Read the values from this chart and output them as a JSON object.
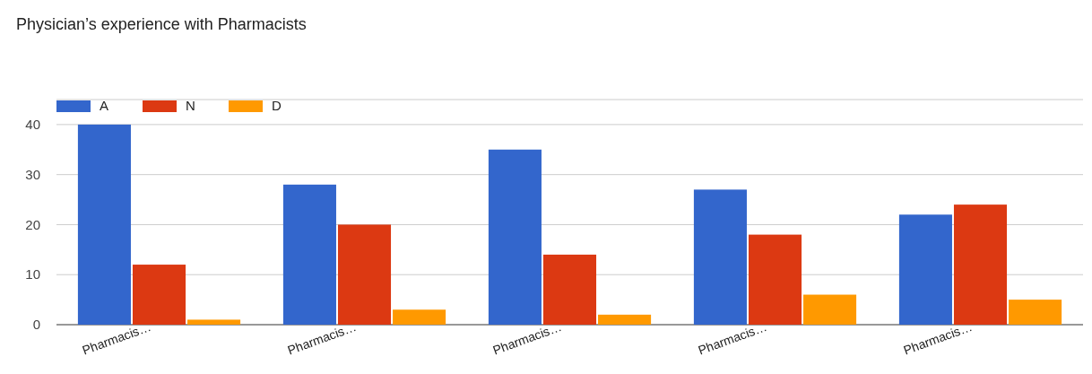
{
  "chart_data": {
    "type": "bar",
    "title": "Physician’s experience with Pharmacists",
    "categories": [
      "Pharmacis…",
      "Pharmacis…",
      "Pharmacis…",
      "Pharmacis…",
      "Pharmacis…"
    ],
    "series": [
      {
        "name": "A",
        "color": "#3366cc",
        "values": [
          40,
          28,
          35,
          27,
          22
        ]
      },
      {
        "name": "N",
        "color": "#dc3912",
        "values": [
          12,
          20,
          14,
          18,
          24
        ]
      },
      {
        "name": "D",
        "color": "#ff9900",
        "values": [
          1,
          3,
          2,
          6,
          5
        ]
      }
    ],
    "ylim": [
      0,
      45
    ],
    "yticks": [
      0,
      10,
      20,
      30,
      40,
      {
        "value": 45,
        "label": null
      }
    ],
    "grid": "y",
    "legend": "top left"
  }
}
